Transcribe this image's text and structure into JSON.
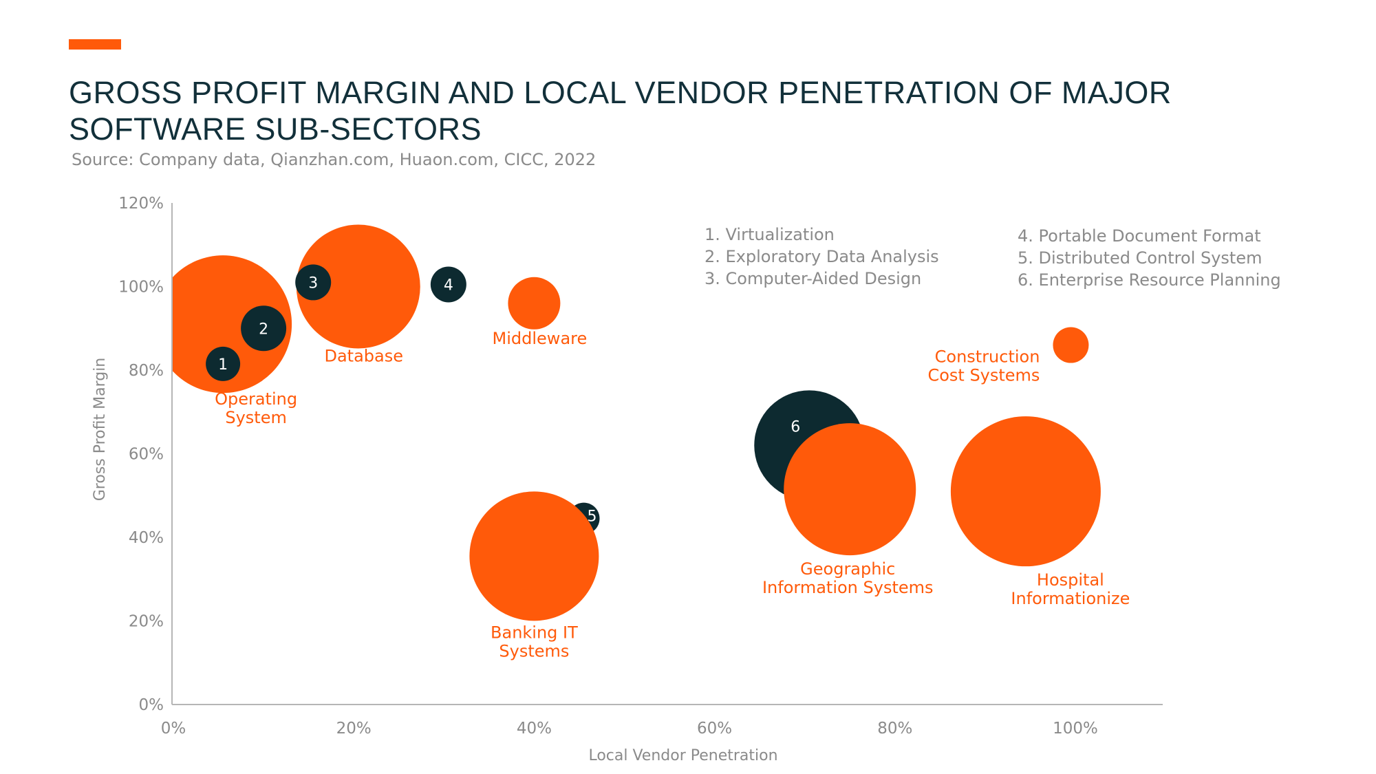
{
  "header": {
    "title_line1": "GROSS PROFIT MARGIN AND LOCAL VENDOR PENETRATION OF MAJOR",
    "title_line2": "SOFTWARE SUB-SECTORS",
    "source": "Source: Company data, Qianzhan.com, Huaon.com, CICC,  2022"
  },
  "colors": {
    "orange": "#ff5a0a",
    "dark": "#0d2a30",
    "title": "#12303a",
    "gray": "#8a8a8a"
  },
  "chart_data": {
    "type": "scatter",
    "xlabel": "Local Vendor Penetration",
    "ylabel": "Gross Profit Margin",
    "xlim": [
      0,
      110
    ],
    "ylim": [
      0,
      120
    ],
    "x_ticks": [
      "0%",
      "20%",
      "40%",
      "60%",
      "80%",
      "100%"
    ],
    "y_ticks": [
      "0%",
      "20%",
      "40%",
      "60%",
      "80%",
      "100%",
      "120%"
    ],
    "legend_left": [
      "1. Virtualization",
      "2. Exploratory Data Analysis",
      "3. Computer-Aided Design"
    ],
    "legend_right": [
      "4. Portable Document Format",
      "5. Distributed Control System",
      "6. Enterprise Resource Planning"
    ],
    "bubbles": [
      {
        "id": "operating-system",
        "x": 5.5,
        "y": 91,
        "size": 10,
        "color": "orange",
        "label_lines": [
          "Operating",
          "System"
        ]
      },
      {
        "id": "database",
        "x": 20.5,
        "y": 100,
        "size": 9,
        "color": "orange",
        "label_lines": [
          "Database"
        ]
      },
      {
        "id": "middleware",
        "x": 40,
        "y": 96,
        "size": 3.8,
        "color": "orange",
        "label_lines": [
          "Middleware"
        ]
      },
      {
        "id": "construction-cost",
        "x": 99.5,
        "y": 86,
        "size": 2.6,
        "color": "orange",
        "label_lines": [
          "Construction",
          "Cost Systems"
        ]
      },
      {
        "id": "erp",
        "num": "6",
        "x": 70.5,
        "y": 62,
        "size": 8,
        "color": "dark"
      },
      {
        "id": "gis",
        "x": 75,
        "y": 51.5,
        "size": 9.6,
        "color": "orange",
        "label_lines": [
          "Geographic",
          "Information Systems"
        ]
      },
      {
        "id": "hospital",
        "x": 94.5,
        "y": 51,
        "size": 10.9,
        "color": "orange",
        "label_lines": [
          "Hospital",
          "Informationize"
        ]
      },
      {
        "id": "dcs",
        "num": "5",
        "x": 45.5,
        "y": 44.5,
        "size": 2.3,
        "color": "dark"
      },
      {
        "id": "banking",
        "x": 40,
        "y": 35.5,
        "size": 9.4,
        "color": "orange",
        "label_lines": [
          "Banking IT",
          "Systems"
        ]
      },
      {
        "id": "virtualization",
        "num": "1",
        "x": 5.5,
        "y": 81.5,
        "size": 2.5,
        "color": "dark"
      },
      {
        "id": "eda",
        "num": "2",
        "x": 10,
        "y": 90,
        "size": 3.3,
        "color": "dark"
      },
      {
        "id": "cad",
        "num": "3",
        "x": 15.5,
        "y": 101,
        "size": 2.6,
        "color": "dark"
      },
      {
        "id": "pdf",
        "num": "4",
        "x": 30.5,
        "y": 100.5,
        "size": 2.6,
        "color": "dark"
      }
    ]
  }
}
